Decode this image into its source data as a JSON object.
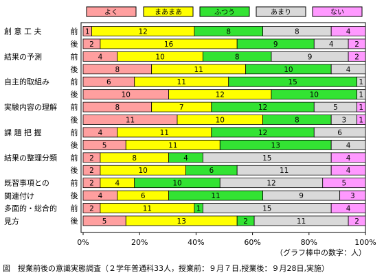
{
  "chart_data": {
    "type": "bar",
    "stacked": true,
    "orientation": "horizontal",
    "percent_scale": true,
    "legend": {
      "position": "top",
      "entries": [
        {
          "name": "よく",
          "color": "#ff9f9f"
        },
        {
          "name": "まあまあ",
          "color": "#ffff00"
        },
        {
          "name": "ふつう",
          "color": "#33e333"
        },
        {
          "name": "あまり",
          "color": "#d9d9d9"
        },
        {
          "name": "ない",
          "color": "#ff99ff"
        }
      ]
    },
    "groups": [
      {
        "label": [
          "創 意 工 夫"
        ],
        "rows": [
          {
            "tag": "前",
            "values": [
              1,
              12,
              8,
              8,
              4
            ]
          },
          {
            "tag": "後",
            "values": [
              2,
              16,
              9,
              4,
              2
            ]
          }
        ]
      },
      {
        "label": [
          "結果の予測"
        ],
        "rows": [
          {
            "tag": "前",
            "values": [
              4,
              10,
              8,
              9,
              2
            ]
          },
          {
            "tag": "後",
            "values": [
              8,
              11,
              10,
              4,
              0
            ]
          }
        ]
      },
      {
        "label": [
          "自主的取組み"
        ],
        "rows": [
          {
            "tag": "前",
            "values": [
              6,
              11,
              15,
              1,
              0
            ]
          },
          {
            "tag": "後",
            "values": [
              10,
              12,
              10,
              1,
              0
            ]
          }
        ]
      },
      {
        "label": [
          "実験内容の理解"
        ],
        "rows": [
          {
            "tag": "前",
            "values": [
              8,
              7,
              12,
              5,
              1
            ]
          },
          {
            "tag": "後",
            "values": [
              11,
              10,
              8,
              3,
              1
            ]
          }
        ]
      },
      {
        "label": [
          "課 題 把 握"
        ],
        "rows": [
          {
            "tag": "前",
            "values": [
              4,
              11,
              12,
              6,
              0
            ]
          },
          {
            "tag": "後",
            "values": [
              5,
              11,
              13,
              4,
              0
            ]
          }
        ]
      },
      {
        "label": [
          "結果の整理分類"
        ],
        "rows": [
          {
            "tag": "前",
            "values": [
              2,
              8,
              4,
              15,
              4
            ]
          },
          {
            "tag": "後",
            "values": [
              2,
              10,
              6,
              11,
              4
            ]
          }
        ]
      },
      {
        "label": [
          "既習事項との",
          "関連付け"
        ],
        "rows": [
          {
            "tag": "前",
            "values": [
              2,
              4,
              10,
              12,
              5
            ]
          },
          {
            "tag": "後",
            "values": [
              4,
              6,
              11,
              9,
              3
            ]
          }
        ]
      },
      {
        "label": [
          "多面的・総合的",
          "見方"
        ],
        "rows": [
          {
            "tag": "前",
            "values": [
              2,
              11,
              1,
              15,
              4
            ]
          },
          {
            "tag": "後",
            "values": [
              5,
              13,
              2,
              11,
              2
            ]
          }
        ]
      }
    ],
    "x_ticks": [
      "0%",
      "20%",
      "40%",
      "60%",
      "80%",
      "100%"
    ],
    "xlim": [
      0,
      100
    ],
    "grid": false,
    "note": "（グラフ棒中の数字：人）",
    "caption": "図　授業前後の意識実態調査（２学年普通科33人，授業前：９月７日,授業後：９月28日,実施）"
  }
}
